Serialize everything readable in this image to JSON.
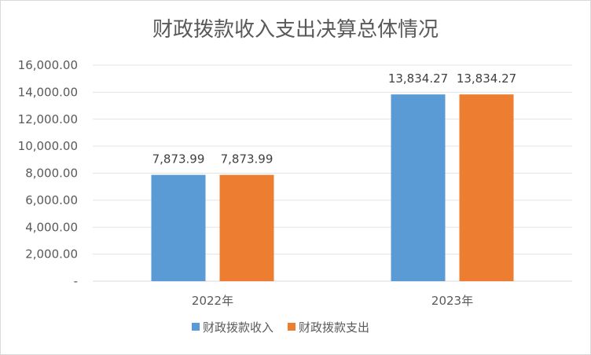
{
  "chart_data": {
    "type": "bar",
    "title": "财政拨款收入支出决算总体情况",
    "categories": [
      "2022年",
      "2023年"
    ],
    "series": [
      {
        "name": "财政拨款收入",
        "values": [
          7873.99,
          13834.27
        ],
        "labels": [
          "7,873.99",
          "13,834.27"
        ],
        "color": "#5b9bd5"
      },
      {
        "name": "财政拨款支出",
        "values": [
          7873.99,
          13834.27
        ],
        "labels": [
          "7,873.99",
          "13,834.27"
        ],
        "color": "#ed7d31"
      }
    ],
    "ylim": [
      0,
      16000
    ],
    "yticks": [
      "-",
      "2,000.00",
      "4,000.00",
      "6,000.00",
      "8,000.00",
      "10,000.00",
      "12,000.00",
      "14,000.00",
      "16,000.00"
    ],
    "grid": true,
    "legend_position": "bottom"
  }
}
